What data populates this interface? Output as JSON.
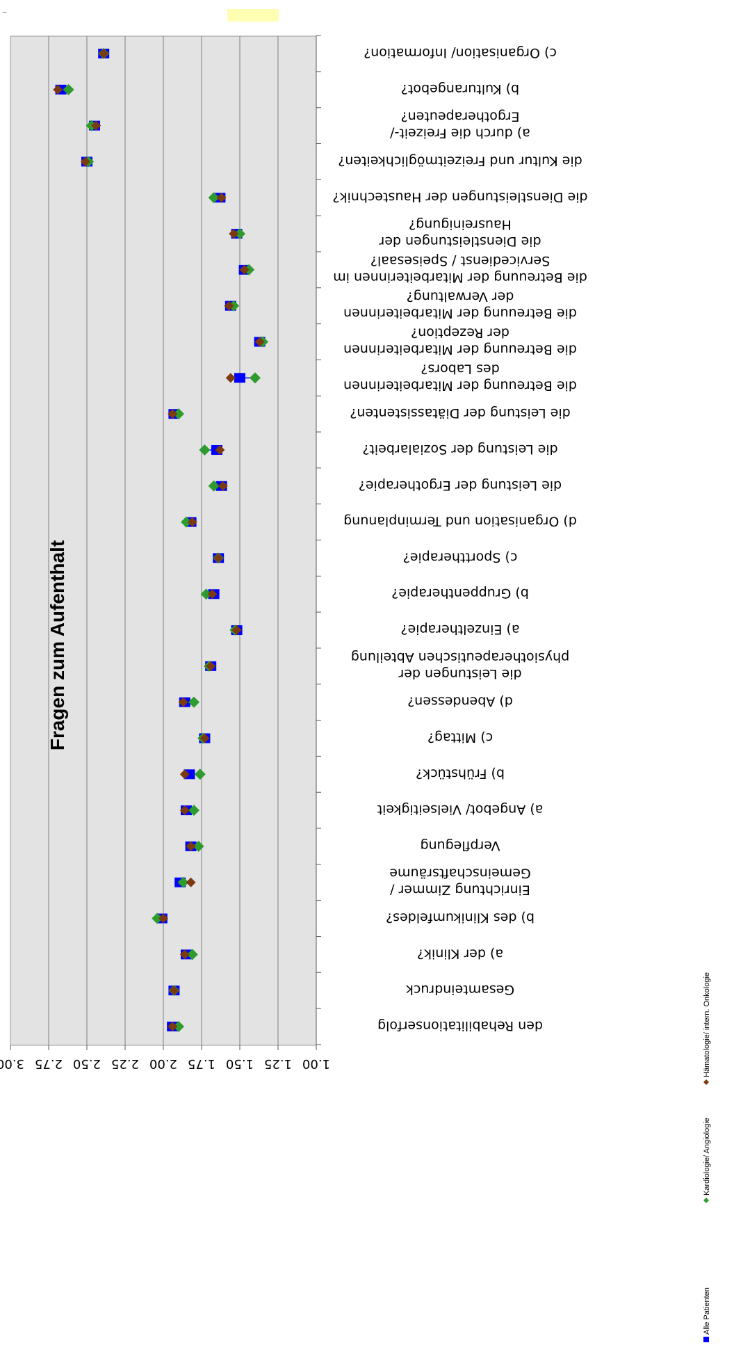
{
  "chart_data": {
    "type": "scatter",
    "title": "Fragen zum Aufenthalt",
    "orientation": "rotated-180",
    "ylim": [
      1.0,
      3.0
    ],
    "y_ticks": [
      "1.00",
      "1.25",
      "1.50",
      "1.75",
      "2.00",
      "2.25",
      "2.50",
      "2.75",
      "3.00"
    ],
    "grid": true,
    "legend_position": "bottom",
    "categories": [
      "den Rehabilitationserfolg",
      "Gesamteindruck",
      "a) der Klinik?",
      "b) des Klinikumfeldes?",
      "Einrichtung Zimmer / Gemeinschaftsräume",
      "Verpflegung",
      "a) Angebot/ Vielseitigkeit",
      "b) Frühstück?",
      "c) Mittag?",
      "d) Abendessen?",
      "die Leistungen der physiotherapeutischen Abteilung",
      "a) Einzeltherapie?",
      "b) Gruppentherapie?",
      "c) Sporttherapie?",
      "d) Organisation und Terminplanung",
      "die Leistung der Ergotherapie?",
      "die Leistung der Sozialarbeit?",
      "die Leistung der Diätassistenten?",
      "die Betreuung der Mitarbeiterinnen des Labors?",
      "die Betreuung der Mitarbeiterinnen der Rezeption?",
      "die Betreuung der Mitarbeiterinnen der Verwaltung?",
      "die Betreuung der Mitarbeiterinnen im Servicedienst / Speisesaal?",
      "die Dienstleistungen der Hausreinigung?",
      "die Dienstleistungen der Haustechnik?",
      "die Kultur und Freizeitmöglichkeiten?",
      "a) durch die Freizeit-/ Ergotherapeuten?",
      "b) Kulturangebot?",
      "c) Organisation/ Information?"
    ],
    "series": [
      {
        "name": "Alle Patienten",
        "marker": "square",
        "color": "#0000ff",
        "values": [
          1.94,
          1.93,
          1.85,
          2.01,
          1.89,
          1.82,
          1.85,
          1.83,
          1.73,
          1.86,
          1.69,
          1.52,
          1.67,
          1.64,
          1.82,
          1.62,
          1.65,
          1.93,
          1.5,
          1.37,
          1.56,
          1.47,
          1.52,
          1.63,
          2.5,
          2.45,
          2.67,
          2.39
        ]
      },
      {
        "name": "Kardiologie/ Angiologie",
        "marker": "diamond",
        "color": "#2e9b2e",
        "values": [
          1.9,
          1.93,
          1.81,
          2.04,
          1.87,
          1.77,
          1.8,
          1.76,
          1.74,
          1.8,
          1.7,
          1.53,
          1.72,
          1.64,
          1.85,
          1.67,
          1.73,
          1.9,
          1.4,
          1.35,
          1.54,
          1.44,
          1.5,
          1.67,
          2.49,
          2.47,
          2.62,
          2.39
        ]
      },
      {
        "name": "Hämatologie/ intern. Onkologie",
        "marker": "diamond",
        "color": "#7b3a10",
        "values": [
          1.94,
          1.93,
          1.86,
          2.0,
          1.82,
          1.82,
          1.86,
          1.86,
          1.73,
          1.87,
          1.69,
          1.52,
          1.68,
          1.64,
          1.81,
          1.61,
          1.63,
          1.94,
          1.56,
          1.37,
          1.57,
          1.47,
          1.54,
          1.62,
          2.51,
          2.44,
          2.69,
          2.39
        ]
      }
    ]
  }
}
